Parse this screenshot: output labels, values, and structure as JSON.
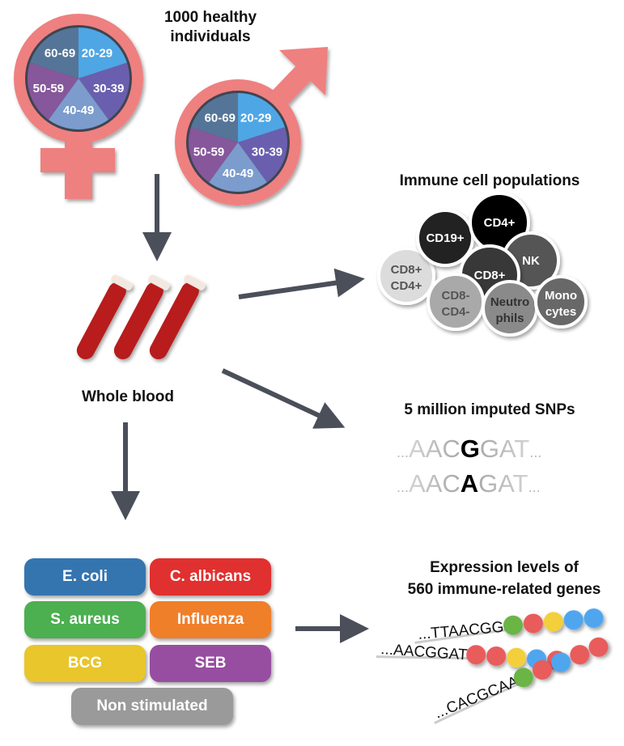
{
  "cohort": {
    "title_line1": "1000 healthy",
    "title_line2": "individuals",
    "age_groups": [
      "20-29",
      "30-39",
      "40-49",
      "50-59",
      "60-69"
    ],
    "age_colors": [
      "#4fa6e4",
      "#6a5fae",
      "#7b9ccd",
      "#86579b",
      "#557598"
    ],
    "symbol_color": "#ee8080"
  },
  "blood": {
    "label": "Whole blood"
  },
  "cells": {
    "title": "Immune cell populations",
    "items": [
      {
        "line1": "CD8+",
        "line2": "CD4+",
        "fill": "#dcdcdc",
        "text": "#555"
      },
      {
        "line1": "CD19+",
        "line2": "",
        "fill": "#222222",
        "text": "#fff"
      },
      {
        "line1": "CD4+",
        "line2": "",
        "fill": "#000000",
        "text": "#fff"
      },
      {
        "line1": "NK",
        "line2": "",
        "fill": "#555555",
        "text": "#fff"
      },
      {
        "line1": "CD8+",
        "line2": "",
        "fill": "#383838",
        "text": "#fff"
      },
      {
        "line1": "CD8-",
        "line2": "CD4-",
        "fill": "#a9a9a9",
        "text": "#555"
      },
      {
        "line1": "Neutro",
        "line2": "phils",
        "fill": "#8a8a8a",
        "text": "#333"
      },
      {
        "line1": "Mono",
        "line2": "cytes",
        "fill": "#676767",
        "text": "#fff"
      }
    ]
  },
  "snps": {
    "title": "5 million imputed SNPs",
    "rows": [
      {
        "prefix": "...",
        "left": "AAC",
        "variant": "G",
        "right": "GAT",
        "suffix": "..."
      },
      {
        "prefix": "...",
        "left": "AAC",
        "variant": "A",
        "right": "GAT",
        "suffix": "..."
      }
    ]
  },
  "stimuli": [
    {
      "label": "E. coli",
      "color": "#3475b0"
    },
    {
      "label": "C. albicans",
      "color": "#e0302f"
    },
    {
      "label": "S. aureus",
      "color": "#4caf50"
    },
    {
      "label": "Influenza",
      "color": "#f07f2a"
    },
    {
      "label": "BCG",
      "color": "#e8c62c"
    },
    {
      "label": "SEB",
      "color": "#984ea0"
    },
    {
      "label": "Non stimulated",
      "color": "#9a9a9a"
    }
  ],
  "expression": {
    "title_line1": "Expression levels of",
    "title_line2": "560 immune-related genes",
    "strands": [
      {
        "sequence": "...TTAACGG",
        "beads": [
          "#6bb545",
          "#e85b5b",
          "#f2cf3a",
          "#4fa6ef",
          "#4fa6ef"
        ]
      },
      {
        "sequence": "...AACGGAT",
        "beads": [
          "#e85b5b",
          "#e85b5b",
          "#f2cf3a",
          "#4fa6ef",
          "#e85b5b"
        ]
      },
      {
        "sequence": "...CACGCAA",
        "beads": [
          "#6bb545",
          "#e85b5b",
          "#4fa6ef",
          "#e85b5b",
          "#e85b5b"
        ]
      }
    ]
  },
  "arrow_color": "#4a4f5a"
}
